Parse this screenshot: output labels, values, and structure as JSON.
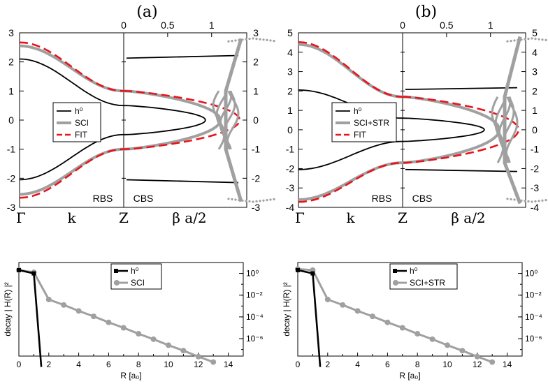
{
  "colors": {
    "h0": "#000000",
    "sci": "#a0a0a0",
    "fit": "#e8141a"
  },
  "panels": [
    {
      "id": "a",
      "label": "(a)",
      "ylim": [
        -3,
        3
      ],
      "yticks": [
        "-3",
        "-2",
        "-1",
        "0",
        "1",
        "2",
        "3"
      ],
      "xticks_left": [
        "Γ",
        "k",
        "Z"
      ],
      "xtick_right": "β a/2",
      "top_ticks": [
        "0",
        "0.5",
        "1"
      ],
      "rbs_label": "RBS",
      "cbs_label": "CBS",
      "legend": [
        "h⁰",
        "SCI",
        "FIT"
      ],
      "bands": {
        "h0_left": [
          2.1,
          -2.05,
          0.5,
          -0.5
        ],
        "sci_edges": [
          2.55,
          1.0,
          -1.0,
          -2.55
        ]
      }
    },
    {
      "id": "b",
      "label": "(b)",
      "ylim": [
        -4,
        5
      ],
      "yticks": [
        "-4",
        "-3",
        "-2",
        "-1",
        "0",
        "1",
        "2",
        "3",
        "4",
        "5"
      ],
      "xticks_left": [
        "Γ",
        "k",
        "Z"
      ],
      "xtick_right": "β a/2",
      "top_ticks": [
        "0",
        "0.5",
        "1"
      ],
      "rbs_label": "RBS",
      "cbs_label": "CBS",
      "legend": [
        "h⁰",
        "SCI+STR",
        "FIT"
      ],
      "bands": {
        "h0_left": [
          2.05,
          -2.05,
          0.6,
          -0.6
        ],
        "sci_edges": [
          4.4,
          1.7,
          -1.7,
          -3.6
        ]
      }
    }
  ],
  "decay": [
    {
      "id": "c",
      "ylabel": "decay | H(R) |²",
      "xlabel": "R [a₀]",
      "xticks": [
        "0",
        "2",
        "4",
        "6",
        "8",
        "10",
        "12",
        "14"
      ],
      "yticks": [
        "10⁰",
        "10⁻²",
        "10⁻⁴",
        "10⁻⁶"
      ],
      "legend": [
        "h⁰",
        "SCI"
      ],
      "h0": {
        "R": [
          0,
          1,
          1.5
        ],
        "logv": [
          0.3,
          0.0,
          -9
        ]
      },
      "sci": {
        "R": [
          0,
          1,
          2,
          3,
          4,
          5,
          6,
          7,
          8,
          9,
          10,
          11,
          12,
          13
        ],
        "logv": [
          0.3,
          0.1,
          -2.4,
          -2.9,
          -3.45,
          -3.95,
          -4.5,
          -5.0,
          -5.55,
          -6.05,
          -6.6,
          -7.1,
          -7.65,
          -8.15
        ]
      }
    },
    {
      "id": "d",
      "ylabel": "decay | H(R) |²",
      "xlabel": "R [a₀]",
      "xticks": [
        "0",
        "2",
        "4",
        "6",
        "8",
        "10",
        "12",
        "14"
      ],
      "yticks": [
        "10⁰",
        "10⁻²",
        "10⁻⁴",
        "10⁻⁶"
      ],
      "legend": [
        "h⁰",
        "SCI+STR"
      ],
      "h0": {
        "R": [
          0,
          1,
          1.5
        ],
        "logv": [
          0.3,
          0.0,
          -9
        ]
      },
      "sci": {
        "R": [
          0,
          1,
          2,
          3,
          4,
          5,
          6,
          7,
          8,
          9,
          10,
          11,
          12,
          13
        ],
        "logv": [
          0.4,
          0.3,
          -2.4,
          -2.9,
          -3.45,
          -3.95,
          -4.5,
          -5.0,
          -5.55,
          -6.05,
          -6.6,
          -7.1,
          -7.65,
          -8.15
        ]
      }
    }
  ],
  "chart_data": [
    {
      "type": "line",
      "title": "(a)",
      "xlabel": "k / β a/2",
      "ylabel": "",
      "ylim": [
        -3,
        3
      ],
      "series": [
        {
          "name": "h⁰"
        },
        {
          "name": "SCI"
        },
        {
          "name": "FIT"
        }
      ]
    },
    {
      "type": "line",
      "title": "(b)",
      "xlabel": "k / β a/2",
      "ylabel": "",
      "ylim": [
        -4,
        5
      ],
      "series": [
        {
          "name": "h⁰"
        },
        {
          "name": "SCI+STR"
        },
        {
          "name": "FIT"
        }
      ]
    },
    {
      "type": "line",
      "title": "",
      "xlabel": "R [a₀]",
      "ylabel": "decay | H(R) |²",
      "xlim": [
        0,
        15
      ],
      "series": [
        {
          "name": "h⁰",
          "x": [
            0,
            1,
            1.5
          ],
          "y": [
            2,
            1,
            1e-09
          ]
        },
        {
          "name": "SCI",
          "x": [
            0,
            1,
            2,
            3,
            4,
            5,
            6,
            7,
            8,
            9,
            10,
            11,
            12,
            13
          ],
          "y": [
            2,
            1.26,
            0.004,
            0.0013,
            0.00035,
            0.00011,
            3e-05,
            1e-05,
            2.8e-06,
            9e-07,
            2.5e-07,
            8e-08,
            2.2e-08,
            7e-09
          ]
        }
      ]
    },
    {
      "type": "line",
      "title": "",
      "xlabel": "R [a₀]",
      "ylabel": "decay | H(R) |²",
      "xlim": [
        0,
        15
      ],
      "series": [
        {
          "name": "h⁰",
          "x": [
            0,
            1,
            1.5
          ],
          "y": [
            2,
            1,
            1e-09
          ]
        },
        {
          "name": "SCI+STR",
          "x": [
            0,
            1,
            2,
            3,
            4,
            5,
            6,
            7,
            8,
            9,
            10,
            11,
            12,
            13
          ],
          "y": [
            2.5,
            2,
            0.004,
            0.0013,
            0.00035,
            0.00011,
            3e-05,
            1e-05,
            2.8e-06,
            9e-07,
            2.5e-07,
            8e-08,
            2.2e-08,
            7e-09
          ]
        }
      ]
    }
  ]
}
